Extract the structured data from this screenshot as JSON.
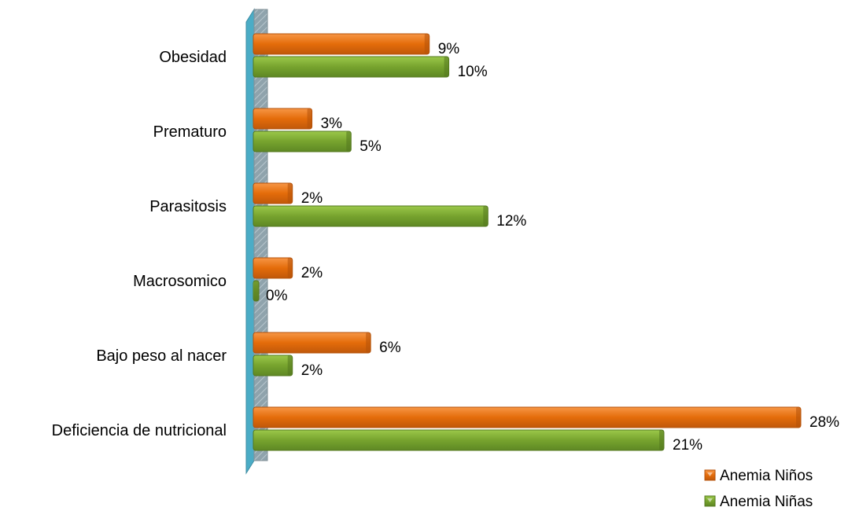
{
  "chart_data": {
    "type": "bar",
    "orientation": "horizontal",
    "title": "",
    "xlabel": "",
    "ylabel": "",
    "categories": [
      "Obesidad",
      "Prematuro",
      "Parasitosis",
      "Macrosomico",
      "Bajo peso al nacer",
      "Deficiencia de nutricional"
    ],
    "series": [
      {
        "name": "Anemia  Niños",
        "values": [
          9,
          3,
          2,
          2,
          6,
          28
        ],
        "labels": [
          "9%",
          "3%",
          "2%",
          "2%",
          "6%",
          "28%"
        ],
        "color": "#E46C0A"
      },
      {
        "name": "Anemia  Niñas",
        "values": [
          10,
          5,
          12,
          0,
          2,
          21
        ],
        "labels": [
          "10%",
          "5%",
          "12%",
          "0%",
          "2%",
          "21%"
        ],
        "color": "#7CA832"
      }
    ],
    "xlim": [
      0,
      28
    ],
    "grid": false,
    "legend": "bottom-right",
    "axis_color": "#4BACC6"
  }
}
